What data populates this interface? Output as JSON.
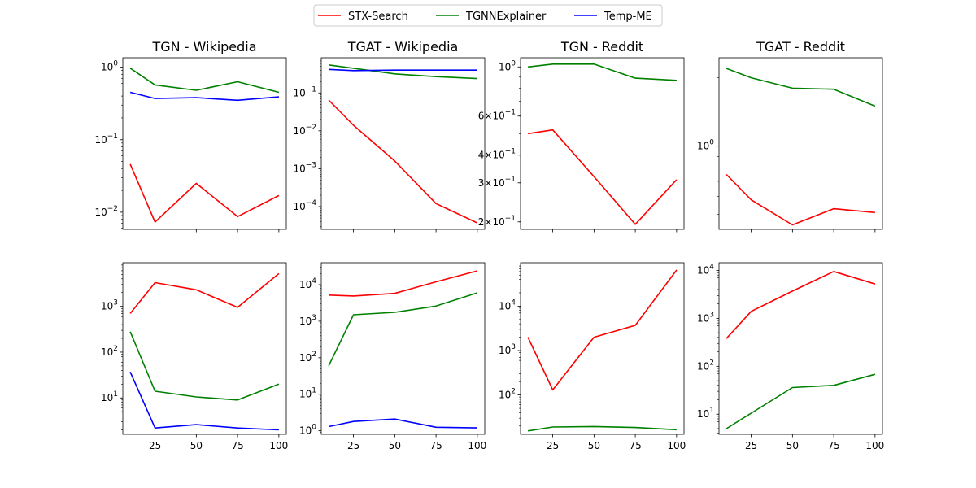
{
  "legend": {
    "position": "top-center",
    "entries": [
      {
        "label": "STX-Search",
        "color": "#ff0000"
      },
      {
        "label": "TGNNExplainer",
        "color": "#008000"
      },
      {
        "label": "Temp-ME",
        "color": "#0000ff"
      }
    ]
  },
  "chart_data": [
    {
      "type": "line",
      "title": "TGN - Wikipedia",
      "yscale": "log",
      "ylim": [
        0.0058,
        1.35
      ],
      "x": [
        10,
        25,
        50,
        75,
        100
      ],
      "xticks": [
        "25",
        "50",
        "75",
        "100"
      ],
      "show_xticklabels": false,
      "yticks": [
        {
          "label": "10^0",
          "value": 1
        },
        {
          "label": "10^-1",
          "value": 0.1
        },
        {
          "label": "10^-2",
          "value": 0.01
        }
      ],
      "series": [
        {
          "name": "STX-Search",
          "color": "#ff0000",
          "values": [
            0.046,
            0.0073,
            0.025,
            0.0087,
            0.017
          ]
        },
        {
          "name": "TGNNExplainer",
          "color": "#008000",
          "values": [
            0.97,
            0.57,
            0.48,
            0.63,
            0.45
          ]
        },
        {
          "name": "Temp-ME",
          "color": "#0000ff",
          "values": [
            0.45,
            0.37,
            0.38,
            0.35,
            0.39
          ]
        }
      ]
    },
    {
      "type": "line",
      "title": "TGAT - Wikipedia",
      "yscale": "log",
      "ylim": [
        2.5e-05,
        0.85
      ],
      "x": [
        10,
        25,
        50,
        75,
        100
      ],
      "xticks": [
        "25",
        "50",
        "75",
        "100"
      ],
      "show_xticklabels": false,
      "yticks": [
        {
          "label": "10^-1",
          "value": 0.1
        },
        {
          "label": "10^-2",
          "value": 0.01
        },
        {
          "label": "10^-3",
          "value": 0.001
        },
        {
          "label": "10^-4",
          "value": 0.0001
        }
      ],
      "series": [
        {
          "name": "STX-Search",
          "color": "#ff0000",
          "values": [
            0.065,
            0.014,
            0.0016,
            0.00012,
            3.7e-05
          ]
        },
        {
          "name": "TGNNExplainer",
          "color": "#008000",
          "values": [
            0.55,
            0.45,
            0.32,
            0.27,
            0.24
          ]
        },
        {
          "name": "Temp-ME",
          "color": "#0000ff",
          "values": [
            0.42,
            0.39,
            0.4,
            0.4,
            0.4
          ]
        }
      ]
    },
    {
      "type": "line",
      "title": "TGN - Reddit",
      "yscale": "log",
      "ylim": [
        0.185,
        1.1
      ],
      "x": [
        10,
        25,
        50,
        75,
        100
      ],
      "xticks": [
        "25",
        "50",
        "75",
        "100"
      ],
      "show_xticklabels": false,
      "yticks": [
        {
          "label": "10^0",
          "value": 1
        },
        {
          "label": "6×10^-1",
          "value": 0.6
        },
        {
          "label": "4×10^-1",
          "value": 0.4
        },
        {
          "label": "3×10^-1",
          "value": 0.3
        },
        {
          "label": "2×10^-1",
          "value": 0.2
        }
      ],
      "series": [
        {
          "name": "STX-Search",
          "color": "#ff0000",
          "values": [
            0.5,
            0.52,
            0.32,
            0.195,
            0.31
          ]
        },
        {
          "name": "TGNNExplainer",
          "color": "#008000",
          "values": [
            1.0,
            1.03,
            1.03,
            0.89,
            0.87
          ]
        }
      ]
    },
    {
      "type": "line",
      "title": "TGAT - Reddit",
      "yscale": "log",
      "ylim": [
        0.43,
        2.45
      ],
      "x": [
        10,
        25,
        50,
        75,
        100
      ],
      "xticks": [
        "25",
        "50",
        "75",
        "100"
      ],
      "show_xticklabels": false,
      "yticks": [
        {
          "label": "10^0",
          "value": 1
        }
      ],
      "series": [
        {
          "name": "STX-Search",
          "color": "#ff0000",
          "values": [
            0.75,
            0.58,
            0.45,
            0.53,
            0.51
          ]
        },
        {
          "name": "TGNNExplainer",
          "color": "#008000",
          "values": [
            2.2,
            2.0,
            1.8,
            1.78,
            1.5
          ]
        }
      ]
    },
    {
      "type": "line",
      "title": "",
      "yscale": "log",
      "ylim": [
        1.6,
        9000
      ],
      "x": [
        10,
        25,
        50,
        75,
        100
      ],
      "xticks": [
        "25",
        "50",
        "75",
        "100"
      ],
      "show_xticklabels": true,
      "yticks": [
        {
          "label": "10^3",
          "value": 1000
        },
        {
          "label": "10^2",
          "value": 100
        },
        {
          "label": "10^1",
          "value": 10
        }
      ],
      "series": [
        {
          "name": "STX-Search",
          "color": "#ff0000",
          "values": [
            700,
            3300,
            2300,
            950,
            5200
          ]
        },
        {
          "name": "TGNNExplainer",
          "color": "#008000",
          "values": [
            280,
            14,
            10.5,
            9,
            20
          ]
        },
        {
          "name": "Temp-ME",
          "color": "#0000ff",
          "values": [
            37,
            2.2,
            2.6,
            2.2,
            2.0
          ]
        }
      ]
    },
    {
      "type": "line",
      "title": "",
      "yscale": "log",
      "ylim": [
        0.8,
        40000
      ],
      "x": [
        10,
        25,
        50,
        75,
        100
      ],
      "xticks": [
        "25",
        "50",
        "75",
        "100"
      ],
      "show_xticklabels": true,
      "yticks": [
        {
          "label": "10^4",
          "value": 10000
        },
        {
          "label": "10^3",
          "value": 1000
        },
        {
          "label": "10^2",
          "value": 100
        },
        {
          "label": "10^1",
          "value": 10
        },
        {
          "label": "10^0",
          "value": 1
        }
      ],
      "series": [
        {
          "name": "STX-Search",
          "color": "#ff0000",
          "values": [
            5200,
            4900,
            5800,
            12000,
            24000
          ]
        },
        {
          "name": "TGNNExplainer",
          "color": "#008000",
          "values": [
            60,
            1500,
            1750,
            2600,
            6000
          ]
        },
        {
          "name": "Temp-ME",
          "color": "#0000ff",
          "values": [
            1.3,
            1.8,
            2.1,
            1.25,
            1.2
          ]
        }
      ]
    },
    {
      "type": "line",
      "title": "",
      "yscale": "log",
      "ylim": [
        13,
        95000
      ],
      "x": [
        10,
        25,
        50,
        75,
        100
      ],
      "xticks": [
        "25",
        "50",
        "75",
        "100"
      ],
      "show_xticklabels": true,
      "yticks": [
        {
          "label": "10^4",
          "value": 10000
        },
        {
          "label": "10^3",
          "value": 1000
        },
        {
          "label": "10^2",
          "value": 100
        }
      ],
      "series": [
        {
          "name": "STX-Search",
          "color": "#ff0000",
          "values": [
            2000,
            130,
            2000,
            3700,
            65000
          ]
        },
        {
          "name": "TGNNExplainer",
          "color": "#008000",
          "values": [
            15.5,
            19,
            19.5,
            18.5,
            16.5
          ]
        }
      ]
    },
    {
      "type": "line",
      "title": "",
      "yscale": "log",
      "ylim": [
        3.8,
        14500
      ],
      "x": [
        10,
        25,
        50,
        75,
        100
      ],
      "xticks": [
        "25",
        "50",
        "75",
        "100"
      ],
      "show_xticklabels": true,
      "yticks": [
        {
          "label": "10^4",
          "value": 10000
        },
        {
          "label": "10^3",
          "value": 1000
        },
        {
          "label": "10^2",
          "value": 100
        },
        {
          "label": "10^1",
          "value": 10
        }
      ],
      "series": [
        {
          "name": "STX-Search",
          "color": "#ff0000",
          "values": [
            380,
            1400,
            3700,
            9500,
            5200
          ]
        },
        {
          "name": "TGNNExplainer",
          "color": "#008000",
          "values": [
            5,
            10.5,
            36,
            40,
            68
          ]
        }
      ]
    }
  ]
}
